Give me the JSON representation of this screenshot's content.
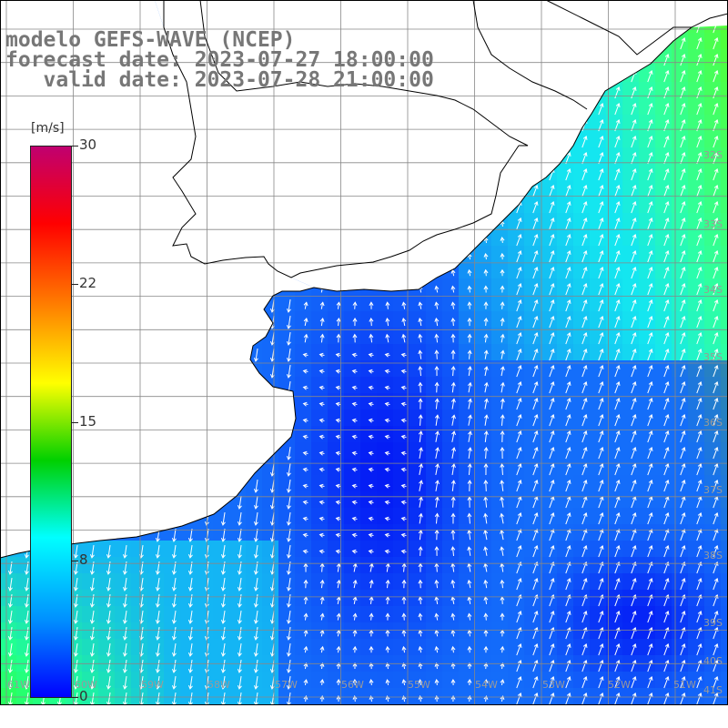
{
  "title": {
    "line1": "modelo GEFS-WAVE (NCEP)",
    "line2": "forecast date: 2023-07-27 18:00:00",
    "line3": "   valid date: 2023-07-28 21:00:00"
  },
  "colorbar": {
    "unit": "[m/s]",
    "ticks": [
      "30",
      "22",
      "15",
      "8",
      "0"
    ],
    "colors": [
      "#c00070",
      "#ff0000",
      "#ff8000",
      "#ffff00",
      "#00d000",
      "#00ffff",
      "#0090ff",
      "#0000ff"
    ]
  },
  "lat_labels": [
    "32S",
    "33S",
    "34S",
    "35S",
    "36S",
    "37S",
    "38S",
    "39S",
    "40S",
    "41S"
  ],
  "lon_labels": [
    "61W",
    "60W",
    "59W",
    "58W",
    "57W",
    "56W",
    "55W",
    "54W",
    "53W",
    "52W",
    "51W"
  ],
  "colors": {
    "land": "#ffffff",
    "coast": "#000000",
    "grid": "#888888",
    "arrows": "#ffffff"
  }
}
